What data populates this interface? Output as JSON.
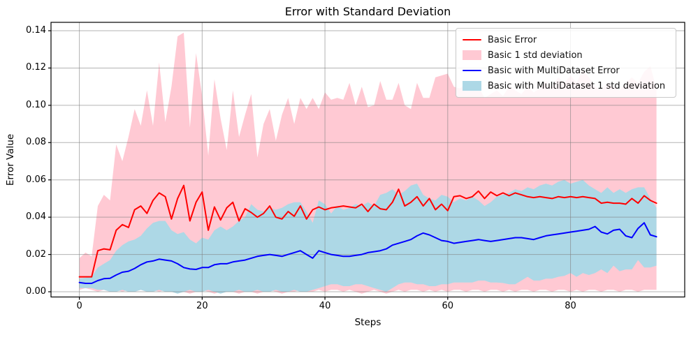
{
  "figure": {
    "title": "Error with Standard Deviation"
  },
  "chart_data": {
    "type": "line",
    "title": "Error with Standard Deviation",
    "xlabel": "Steps",
    "ylabel": "Error Value",
    "grid": true,
    "legend_position": "upper right",
    "xlim": [
      -4.62,
      98.6
    ],
    "ylim": [
      -0.0028,
      0.1445
    ],
    "x_start": 0,
    "x_step": 1,
    "n_points": 95,
    "x_ticks": [
      {
        "label": "0",
        "value": 0
      },
      {
        "label": "20",
        "value": 20
      },
      {
        "label": "40",
        "value": 40
      },
      {
        "label": "60",
        "value": 60
      },
      {
        "label": "80",
        "value": 80
      }
    ],
    "y_ticks": [
      {
        "label": "0.00",
        "value": 0.0
      },
      {
        "label": "0.02",
        "value": 0.02
      },
      {
        "label": "0.04",
        "value": 0.04
      },
      {
        "label": "0.06",
        "value": 0.06
      },
      {
        "label": "0.08",
        "value": 0.08
      },
      {
        "label": "0.10",
        "value": 0.1
      },
      {
        "label": "0.12",
        "value": 0.12
      },
      {
        "label": "0.14",
        "value": 0.14
      }
    ],
    "colors": {
      "basic_error": "#ff0000",
      "basic_std": "#ffc0cb",
      "multi_error": "#0000ff",
      "multi_std": "#add8e6",
      "grid": "#808080",
      "frame": "#000000"
    },
    "series": [
      {
        "id": "basic-error",
        "name": "Basic Error",
        "type": "line",
        "color": "#ff0000",
        "values": [
          0.008,
          0.008,
          0.008,
          0.022,
          0.023,
          0.0225,
          0.033,
          0.036,
          0.0345,
          0.044,
          0.046,
          0.042,
          0.049,
          0.053,
          0.051,
          0.039,
          0.05,
          0.057,
          0.038,
          0.048,
          0.0535,
          0.033,
          0.0455,
          0.0385,
          0.045,
          0.048,
          0.038,
          0.0445,
          0.0425,
          0.04,
          0.042,
          0.046,
          0.04,
          0.039,
          0.043,
          0.0405,
          0.046,
          0.039,
          0.044,
          0.0455,
          0.044,
          0.045,
          0.0455,
          0.046,
          0.0455,
          0.045,
          0.047,
          0.043,
          0.047,
          0.0445,
          0.044,
          0.048,
          0.055,
          0.046,
          0.048,
          0.051,
          0.046,
          0.05,
          0.044,
          0.047,
          0.0435,
          0.051,
          0.0515,
          0.05,
          0.051,
          0.054,
          0.05,
          0.0535,
          0.0515,
          0.053,
          0.0515,
          0.053,
          0.052,
          0.051,
          0.0505,
          0.051,
          0.0505,
          0.05,
          0.051,
          0.0505,
          0.051,
          0.0505,
          0.051,
          0.0505,
          0.05,
          0.0475,
          0.048,
          0.0475,
          0.0475,
          0.047,
          0.05,
          0.0475,
          0.0515,
          0.049,
          0.0475
        ]
      },
      {
        "id": "basic-std",
        "name": "Basic 1 std deviation",
        "type": "band",
        "color": "#ffc0cb",
        "opacity": 0.85,
        "upper": [
          0.018,
          0.021,
          0.019,
          0.046,
          0.052,
          0.049,
          0.079,
          0.07,
          0.083,
          0.098,
          0.089,
          0.108,
          0.089,
          0.123,
          0.091,
          0.11,
          0.137,
          0.139,
          0.088,
          0.128,
          0.105,
          0.073,
          0.114,
          0.093,
          0.076,
          0.108,
          0.083,
          0.095,
          0.106,
          0.072,
          0.09,
          0.098,
          0.081,
          0.095,
          0.104,
          0.09,
          0.104,
          0.098,
          0.104,
          0.098,
          0.107,
          0.103,
          0.104,
          0.103,
          0.112,
          0.1,
          0.11,
          0.099,
          0.1,
          0.113,
          0.103,
          0.103,
          0.112,
          0.1,
          0.098,
          0.112,
          0.104,
          0.104,
          0.115,
          0.116,
          0.117,
          0.11,
          0.109,
          0.112,
          0.108,
          0.11,
          0.104,
          0.106,
          0.108,
          0.105,
          0.11,
          0.108,
          0.106,
          0.11,
          0.107,
          0.109,
          0.113,
          0.11,
          0.115,
          0.112,
          0.116,
          0.112,
          0.119,
          0.115,
          0.11,
          0.108,
          0.112,
          0.11,
          0.108,
          0.112,
          0.115,
          0.112,
          0.118,
          0.121,
          0.109
        ],
        "lower": [
          0.001,
          0.002,
          0.001,
          0.0,
          0.001,
          0.0,
          0.001,
          0.0,
          0.001,
          0.0,
          0.001,
          0.0,
          0.001,
          0.0,
          0.001,
          0.0,
          0.001,
          0.0,
          -0.001,
          0.0,
          0.001,
          0.0,
          -0.001,
          0.0,
          0.001,
          0.0,
          -0.001,
          0.0,
          0.0,
          -0.001,
          0.0,
          0.001,
          0.0,
          -0.001,
          0.0,
          0.0,
          0.001,
          0.0,
          0.0,
          0.001,
          0.0,
          0.001,
          0.001,
          0.0,
          0.001,
          0.0,
          -0.001,
          0.0,
          0.001,
          0.0,
          -0.001,
          0.0,
          0.001,
          0.0,
          0.001,
          0.001,
          0.0,
          0.001,
          0.0,
          0.001,
          0.0,
          0.001,
          0.001,
          0.0,
          0.001,
          0.001,
          0.0,
          0.001,
          0.001,
          0.0,
          0.001,
          0.0,
          0.001,
          0.001,
          0.0,
          0.001,
          0.001,
          0.0,
          0.001,
          0.001,
          0.0,
          0.001,
          0.0,
          0.001,
          0.001,
          0.0,
          0.001,
          0.001,
          0.0,
          0.001,
          0.001,
          0.0,
          0.001,
          0.001,
          0.001
        ]
      },
      {
        "id": "multi-error",
        "name": "Basic with MultiDataset Error",
        "type": "line",
        "color": "#0000ff",
        "values": [
          0.005,
          0.0045,
          0.0045,
          0.006,
          0.007,
          0.0072,
          0.009,
          0.0105,
          0.011,
          0.0125,
          0.0145,
          0.016,
          0.0165,
          0.0175,
          0.017,
          0.0165,
          0.015,
          0.013,
          0.0122,
          0.012,
          0.013,
          0.013,
          0.0145,
          0.015,
          0.015,
          0.016,
          0.0165,
          0.017,
          0.018,
          0.019,
          0.0195,
          0.02,
          0.0195,
          0.019,
          0.02,
          0.021,
          0.022,
          0.02,
          0.018,
          0.022,
          0.021,
          0.02,
          0.0195,
          0.019,
          0.019,
          0.0195,
          0.02,
          0.021,
          0.0215,
          0.022,
          0.023,
          0.025,
          0.026,
          0.027,
          0.028,
          0.03,
          0.0315,
          0.0305,
          0.029,
          0.0275,
          0.027,
          0.026,
          0.0265,
          0.027,
          0.0275,
          0.028,
          0.0275,
          0.027,
          0.0275,
          0.028,
          0.0285,
          0.029,
          0.029,
          0.0285,
          0.028,
          0.029,
          0.03,
          0.0305,
          0.031,
          0.0315,
          0.032,
          0.0325,
          0.033,
          0.0335,
          0.035,
          0.032,
          0.031,
          0.033,
          0.0335,
          0.03,
          0.029,
          0.034,
          0.037,
          0.0305,
          0.0295
        ]
      },
      {
        "id": "multi-std",
        "name": "Basic with MultiDataset 1 std deviation",
        "type": "band",
        "color": "#add8e6",
        "opacity": 1,
        "upper": [
          0.007,
          0.0075,
          0.008,
          0.013,
          0.015,
          0.017,
          0.022,
          0.025,
          0.027,
          0.028,
          0.03,
          0.034,
          0.037,
          0.038,
          0.038,
          0.033,
          0.031,
          0.032,
          0.028,
          0.026,
          0.029,
          0.028,
          0.033,
          0.035,
          0.033,
          0.035,
          0.038,
          0.04,
          0.047,
          0.044,
          0.043,
          0.045,
          0.044,
          0.045,
          0.047,
          0.048,
          0.048,
          0.043,
          0.037,
          0.049,
          0.047,
          0.042,
          0.046,
          0.044,
          0.045,
          0.047,
          0.046,
          0.048,
          0.046,
          0.052,
          0.053,
          0.055,
          0.052,
          0.054,
          0.057,
          0.058,
          0.052,
          0.05,
          0.049,
          0.052,
          0.051,
          0.048,
          0.05,
          0.049,
          0.051,
          0.049,
          0.046,
          0.048,
          0.051,
          0.052,
          0.053,
          0.055,
          0.054,
          0.056,
          0.055,
          0.057,
          0.058,
          0.057,
          0.059,
          0.06,
          0.058,
          0.059,
          0.06,
          0.057,
          0.055,
          0.053,
          0.056,
          0.053,
          0.055,
          0.053,
          0.055,
          0.056,
          0.056,
          0.05,
          0.045
        ],
        "lower": [
          0.002,
          0.002,
          0.002,
          0.001,
          0.001,
          0.0,
          0.0,
          0.001,
          0.0,
          0.0,
          0.001,
          0.0,
          0.0,
          0.001,
          0.0,
          0.0,
          -0.001,
          0.0,
          0.001,
          0.0,
          0.0,
          0.001,
          0.0,
          -0.001,
          0.0,
          0.0,
          0.001,
          0.0,
          0.0,
          0.001,
          0.0,
          0.0,
          0.001,
          0.0,
          0.0,
          0.001,
          0.0,
          0.0,
          0.001,
          0.002,
          0.003,
          0.004,
          0.004,
          0.003,
          0.003,
          0.004,
          0.004,
          0.003,
          0.002,
          0.001,
          0.0,
          0.002,
          0.004,
          0.005,
          0.005,
          0.004,
          0.004,
          0.003,
          0.003,
          0.004,
          0.004,
          0.005,
          0.005,
          0.005,
          0.005,
          0.006,
          0.006,
          0.005,
          0.005,
          0.0047,
          0.004,
          0.004,
          0.006,
          0.008,
          0.006,
          0.006,
          0.007,
          0.007,
          0.008,
          0.0085,
          0.01,
          0.008,
          0.01,
          0.009,
          0.01,
          0.012,
          0.01,
          0.014,
          0.011,
          0.012,
          0.012,
          0.017,
          0.013,
          0.013,
          0.014
        ]
      }
    ]
  }
}
